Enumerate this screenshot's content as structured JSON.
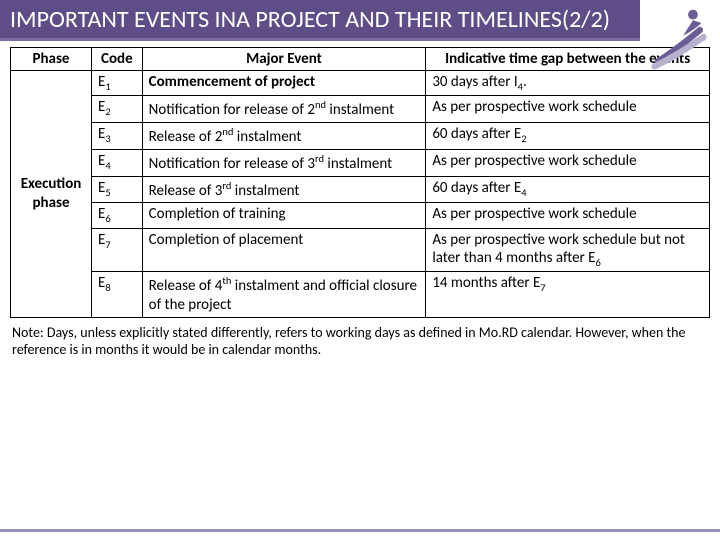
{
  "title": "IMPORTANT EVENTS INA PROJECT AND THEIR TIMELINES(2/2)",
  "headers": {
    "phase": "Phase",
    "code": "Code",
    "event": "Major Event",
    "gap": "Indicative time gap between the events"
  },
  "phase_label": "Execution phase",
  "rows": [
    {
      "code_html": "E<sub>1</sub>",
      "event_html": "<b>Commencement of project</b>",
      "gap_html": "30 days after I<sub>4</sub>."
    },
    {
      "code_html": "E<sub>2</sub>",
      "event_html": "Notification for release of 2<sup>nd</sup> instalment",
      "gap_html": "As per prospective work schedule"
    },
    {
      "code_html": "E<sub>3</sub>",
      "event_html": "Release of 2<sup>nd</sup> instalment",
      "gap_html": "60 days after E<sub>2</sub>"
    },
    {
      "code_html": "E<sub>4</sub>",
      "event_html": "Notification for release of 3<sup>rd</sup> instalment",
      "gap_html": "As per prospective work schedule"
    },
    {
      "code_html": "E<sub>5</sub>",
      "event_html": "Release of 3<sup>rd</sup> instalment",
      "gap_html": "60 days after E<sub>4</sub>"
    },
    {
      "code_html": "E<sub>6</sub>",
      "event_html": "Completion of training",
      "gap_html": "As per prospective work schedule"
    },
    {
      "code_html": "E<sub>7</sub>",
      "event_html": "Completion of placement",
      "gap_html": "As per prospective work schedule but not later than 4 months after E<sub>6</sub>"
    },
    {
      "code_html": "E<sub>8</sub>",
      "event_html": "Release of 4<sup>th</sup> instalment and official closure of the project",
      "gap_html": "14 months after E<sub>7</sub>"
    }
  ],
  "note": "Note: Days, unless explicitly stated differently, refers to working days as defined in Mo.RD calendar. However, when the reference is in months it would be in calendar months.",
  "colors": {
    "title_bg": "#5e4d87",
    "title_fg": "#ffffff",
    "underline": "#7a6ba0",
    "bottom_line": "#9a8fb8",
    "border": "#000000"
  }
}
